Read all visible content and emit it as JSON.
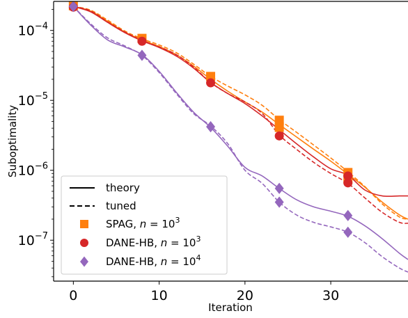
{
  "chart_data": {
    "type": "line",
    "title": "",
    "xlabel": "Iteration",
    "ylabel": "Suboptimality",
    "xlim": [
      -2.3,
      39
    ],
    "ylim": [
      2.6e-08,
      0.00026
    ],
    "yscale": "log",
    "grid": false,
    "legend_placement": "lower-left",
    "x_ticks": [
      0,
      10,
      20,
      30
    ],
    "x_tick_labels": [
      "0",
      "10",
      "20",
      "30"
    ],
    "y_ticks": [
      1e-07,
      1e-06,
      1e-05,
      0.0001
    ],
    "y_tick_labels": [
      {
        "base": "10",
        "exp": "−7"
      },
      {
        "base": "10",
        "exp": "−6"
      },
      {
        "base": "10",
        "exp": "−5"
      },
      {
        "base": "10",
        "exp": "−4"
      }
    ],
    "legend": [
      {
        "label": "theory",
        "kind": "line",
        "dash": false,
        "color": "#000000"
      },
      {
        "label": "tuned",
        "kind": "line",
        "dash": true,
        "color": "#000000"
      },
      {
        "label_base": "SPAG, ",
        "label_var": "n",
        "label_eq": " = 10",
        "label_exp": "3",
        "kind": "marker",
        "marker": "square",
        "color": "#ff7f0e"
      },
      {
        "label_base": "DANE-HB, ",
        "label_var": "n",
        "label_eq": " = 10",
        "label_exp": "3",
        "kind": "marker",
        "marker": "circle",
        "color": "#d62728"
      },
      {
        "label_base": "DANE-HB, ",
        "label_var": "n",
        "label_eq": " = 10",
        "label_exp": "4",
        "kind": "marker",
        "marker": "diamond",
        "color": "#9467bd"
      }
    ],
    "series": [
      {
        "color": "#ff7f0e",
        "dash": false,
        "marker": "square",
        "x": [
          0,
          2,
          4,
          6,
          8,
          10,
          12,
          14,
          16,
          18,
          20,
          22,
          24,
          26,
          28,
          30,
          32,
          34,
          36,
          38,
          39
        ],
        "y": [
          0.00022,
          0.00019,
          0.000135,
          9.5e-05,
          7.3e-05,
          5.9e-05,
          4.5e-05,
          3.1e-05,
          2e-05,
          1.35e-05,
          9.5e-06,
          6.8e-06,
          4.5e-06,
          3e-06,
          2e-06,
          1.35e-06,
          8.8e-07,
          5.7e-07,
          3.5e-07,
          2.3e-07,
          2e-07
        ]
      },
      {
        "color": "#ff7f0e",
        "dash": true,
        "marker": "square",
        "x": [
          0,
          2,
          4,
          6,
          8,
          10,
          12,
          14,
          16,
          18,
          20,
          22,
          24,
          26,
          28,
          30,
          32,
          34,
          36,
          38,
          39
        ],
        "y": [
          0.00022,
          0.000195,
          0.00014,
          9.8e-05,
          7.6e-05,
          6.2e-05,
          4.8e-05,
          3.3e-05,
          2.2e-05,
          1.6e-05,
          1.2e-05,
          8.5e-06,
          5.3e-06,
          3.5e-06,
          2.3e-06,
          1.5e-06,
          9.5e-07,
          5.8e-07,
          3.3e-07,
          2.15e-07,
          2e-07
        ]
      },
      {
        "color": "#d62728",
        "dash": false,
        "marker": "circle",
        "x": [
          0,
          2,
          4,
          6,
          8,
          10,
          12,
          14,
          16,
          18,
          20,
          22,
          24,
          26,
          28,
          30,
          32,
          34,
          36,
          38,
          39
        ],
        "y": [
          0.00022,
          0.000185,
          0.00013,
          9.3e-05,
          7.1e-05,
          5.7e-05,
          4.3e-05,
          2.9e-05,
          1.8e-05,
          1.25e-05,
          9e-06,
          6e-06,
          3.8e-06,
          2.4e-06,
          1.55e-06,
          1.05e-06,
          8.5e-07,
          5.2e-07,
          4.3e-07,
          4.3e-07,
          4.3e-07
        ]
      },
      {
        "color": "#d62728",
        "dash": true,
        "marker": "circle",
        "x": [
          0,
          2,
          4,
          6,
          8,
          10,
          12,
          14,
          16,
          18,
          20,
          22,
          24,
          26,
          28,
          30,
          32,
          34,
          36,
          38,
          39
        ],
        "y": [
          0.00022,
          0.00019,
          0.000132,
          9.5e-05,
          7.2e-05,
          5.8e-05,
          4.5e-05,
          3e-05,
          1.8e-05,
          1.25e-05,
          9.5e-06,
          6.5e-06,
          3.2e-06,
          2e-06,
          1.3e-06,
          9e-07,
          6.5e-07,
          4e-07,
          2.5e-07,
          1.8e-07,
          1.75e-07
        ]
      },
      {
        "color": "#9467bd",
        "dash": false,
        "marker": "diamond",
        "x": [
          0,
          2,
          4,
          6,
          8,
          10,
          12,
          14,
          16,
          18,
          20,
          22,
          24,
          26,
          28,
          30,
          32,
          34,
          36,
          38,
          39
        ],
        "y": [
          0.00022,
          0.00012,
          7.3e-05,
          5.8e-05,
          4.5e-05,
          2.6e-05,
          1.3e-05,
          6.8e-06,
          4.1e-06,
          2.2e-06,
          1.1e-06,
          8.3e-07,
          5.5e-07,
          3.8e-07,
          3e-07,
          2.6e-07,
          2.2e-07,
          1.6e-07,
          1.05e-07,
          6.5e-08,
          5.3e-08
        ]
      },
      {
        "color": "#9467bd",
        "dash": true,
        "marker": "diamond",
        "x": [
          0,
          2,
          4,
          6,
          8,
          10,
          12,
          14,
          16,
          18,
          20,
          22,
          24,
          26,
          28,
          30,
          32,
          34,
          36,
          38,
          39
        ],
        "y": [
          0.00022,
          0.000125,
          7.8e-05,
          6e-05,
          4.4e-05,
          2.5e-05,
          1.25e-05,
          6.5e-06,
          4.3e-06,
          2.4e-06,
          1e-06,
          6.5e-07,
          3.5e-07,
          2.3e-07,
          1.8e-07,
          1.55e-07,
          1.3e-07,
          9.2e-08,
          5.8e-08,
          4e-08,
          3.5e-08
        ]
      }
    ],
    "markers": [
      {
        "marker": "square",
        "color": "#ff7f0e",
        "points": [
          [
            0,
            0.000225
          ],
          [
            8,
            7.7e-05
          ],
          [
            16,
            2.2e-05
          ],
          [
            24,
            5.2e-06
          ],
          [
            24,
            4.1e-06
          ],
          [
            32,
            9.3e-07
          ],
          [
            32,
            7.5e-07
          ]
        ]
      },
      {
        "marker": "circle",
        "color": "#d62728",
        "points": [
          [
            0,
            0.000215
          ],
          [
            8,
            7e-05
          ],
          [
            16,
            1.78e-05
          ],
          [
            24,
            3.1e-06
          ],
          [
            32,
            8.3e-07
          ],
          [
            32,
            6.6e-07
          ]
        ]
      },
      {
        "marker": "diamond",
        "color": "#9467bd",
        "points": [
          [
            0,
            0.00022
          ],
          [
            8,
            4.4e-05
          ],
          [
            16,
            4.2e-06
          ],
          [
            24,
            5.5e-07
          ],
          [
            24,
            3.5e-07
          ],
          [
            32,
            2.25e-07
          ],
          [
            32,
            1.3e-07
          ]
        ]
      }
    ]
  }
}
